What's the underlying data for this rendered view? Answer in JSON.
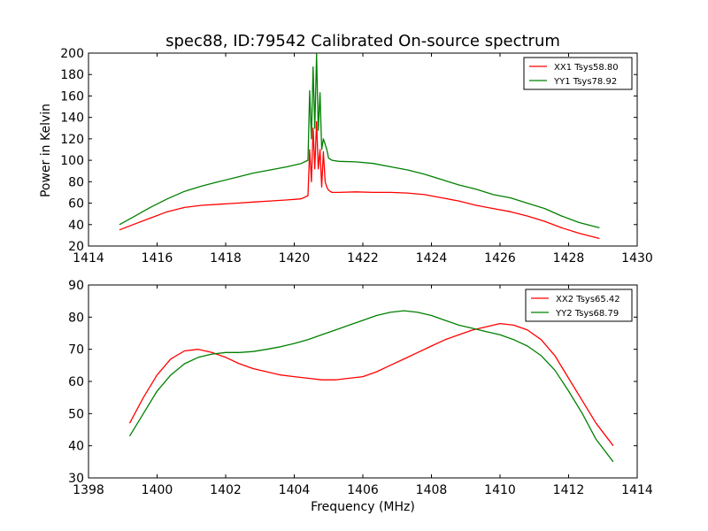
{
  "chart_data": [
    {
      "type": "line",
      "title": "spec88, ID:79542 Calibrated On-source spectrum",
      "xlabel": "",
      "ylabel": "Power in Kelvin",
      "xlim": [
        1414,
        1430
      ],
      "ylim": [
        20,
        200
      ],
      "xticks": [
        "1414",
        "1416",
        "1418",
        "1420",
        "1422",
        "1424",
        "1426",
        "1428",
        "1430"
      ],
      "yticks": [
        "20",
        "40",
        "60",
        "80",
        "100",
        "120",
        "140",
        "160",
        "180",
        "200"
      ],
      "legend_position": "top-right",
      "series": [
        {
          "name": "XX1 Tsys58.80",
          "color": "#ff0000",
          "x": [
            1414.9,
            1415.3,
            1415.8,
            1416.3,
            1416.8,
            1417.3,
            1417.8,
            1418.3,
            1418.8,
            1419.3,
            1419.8,
            1420.2,
            1420.4,
            1420.45,
            1420.5,
            1420.55,
            1420.6,
            1420.65,
            1420.7,
            1420.75,
            1420.8,
            1420.85,
            1420.9,
            1420.95,
            1421.0,
            1421.1,
            1421.3,
            1421.8,
            1422.3,
            1422.8,
            1423.3,
            1423.8,
            1424.3,
            1424.8,
            1425.3,
            1425.8,
            1426.3,
            1426.8,
            1427.3,
            1427.8,
            1428.3,
            1428.9
          ],
          "values": [
            35,
            40,
            46,
            52,
            56,
            58,
            59,
            60,
            61,
            62,
            63,
            64,
            67,
            110,
            80,
            130,
            92,
            136,
            92,
            110,
            75,
            108,
            80,
            75,
            72,
            70,
            70,
            70.5,
            70,
            70,
            69.5,
            68,
            65,
            62,
            58,
            55,
            52,
            48,
            43,
            37,
            32,
            27
          ]
        },
        {
          "name": "YY1 Tsys78.92",
          "color": "#008000",
          "x": [
            1414.9,
            1415.3,
            1415.8,
            1416.3,
            1416.8,
            1417.3,
            1417.8,
            1418.3,
            1418.8,
            1419.3,
            1419.8,
            1420.2,
            1420.4,
            1420.45,
            1420.5,
            1420.55,
            1420.6,
            1420.65,
            1420.7,
            1420.75,
            1420.8,
            1420.85,
            1420.9,
            1420.95,
            1421.0,
            1421.1,
            1421.3,
            1421.8,
            1422.3,
            1422.8,
            1423.3,
            1423.8,
            1424.3,
            1424.8,
            1425.3,
            1425.8,
            1426.3,
            1426.8,
            1427.3,
            1427.8,
            1428.3,
            1428.9
          ],
          "values": [
            40,
            47,
            56,
            64,
            71,
            76,
            80,
            84,
            88,
            91,
            94,
            97,
            100,
            165,
            120,
            187,
            130,
            199,
            128,
            163,
            110,
            120,
            115,
            110,
            102,
            100,
            99,
            98.5,
            97,
            94,
            91,
            87,
            82,
            77,
            73,
            68,
            65,
            60,
            55,
            48,
            42,
            37
          ]
        }
      ]
    },
    {
      "type": "line",
      "title": "",
      "xlabel": "Frequency (MHz)",
      "ylabel": "",
      "xlim": [
        1398,
        1414
      ],
      "ylim": [
        30,
        90
      ],
      "xticks": [
        "1398",
        "1400",
        "1402",
        "1404",
        "1406",
        "1408",
        "1410",
        "1412",
        "1414"
      ],
      "yticks": [
        "30",
        "40",
        "50",
        "60",
        "70",
        "80",
        "90"
      ],
      "legend_position": "top-right",
      "series": [
        {
          "name": "XX2 Tsys65.42",
          "color": "#ff0000",
          "x": [
            1399.2,
            1399.6,
            1400.0,
            1400.4,
            1400.8,
            1401.2,
            1401.6,
            1402.0,
            1402.4,
            1402.8,
            1403.2,
            1403.6,
            1404.0,
            1404.4,
            1404.8,
            1405.2,
            1405.6,
            1406.0,
            1406.4,
            1406.8,
            1407.2,
            1407.6,
            1408.0,
            1408.4,
            1408.8,
            1409.2,
            1409.6,
            1410.0,
            1410.4,
            1410.8,
            1411.2,
            1411.6,
            1412.0,
            1412.4,
            1412.8,
            1413.3
          ],
          "values": [
            47,
            55,
            62,
            67,
            69.5,
            70,
            69,
            67.5,
            65.5,
            64,
            63,
            62,
            61.5,
            61,
            60.5,
            60.5,
            61,
            61.5,
            63,
            65,
            67,
            69,
            71,
            73,
            74.5,
            76,
            77,
            78,
            77.5,
            76,
            73,
            68,
            61,
            54,
            47,
            40
          ]
        },
        {
          "name": "YY2 Tsys68.79",
          "color": "#008000",
          "x": [
            1399.2,
            1399.6,
            1400.0,
            1400.4,
            1400.8,
            1401.2,
            1401.6,
            1402.0,
            1402.4,
            1402.8,
            1403.2,
            1403.6,
            1404.0,
            1404.4,
            1404.8,
            1405.2,
            1405.6,
            1406.0,
            1406.4,
            1406.8,
            1407.2,
            1407.6,
            1408.0,
            1408.4,
            1408.8,
            1409.2,
            1409.6,
            1410.0,
            1410.4,
            1410.8,
            1411.2,
            1411.6,
            1412.0,
            1412.4,
            1412.8,
            1413.3
          ],
          "values": [
            43,
            50,
            57,
            62,
            65.5,
            67.5,
            68.5,
            69,
            69,
            69.3,
            70,
            70.8,
            71.8,
            73,
            74.5,
            76,
            77.5,
            79,
            80.5,
            81.5,
            82,
            81.5,
            80.5,
            79,
            77.5,
            76.5,
            75.5,
            74.5,
            73,
            71,
            68,
            63.5,
            57,
            50,
            42,
            35
          ]
        }
      ]
    }
  ]
}
